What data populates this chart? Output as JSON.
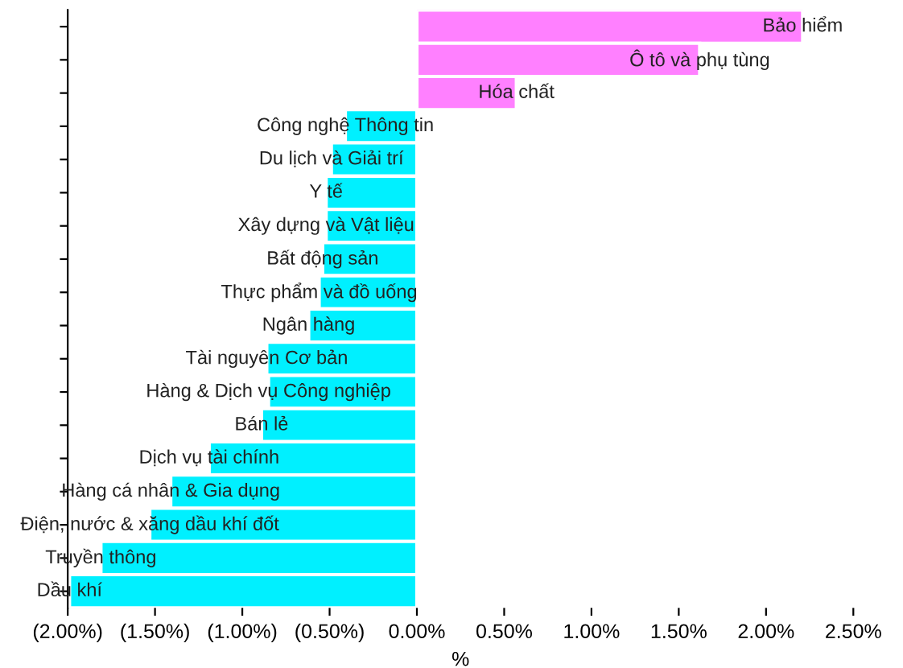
{
  "chart_data": {
    "type": "bar",
    "orientation": "horizontal",
    "xlabel": "%",
    "categories": [
      "Bảo hiểm",
      "Ô tô và phụ tùng",
      "Hóa chất",
      "Công nghệ Thông tin",
      "Du lịch và Giải trí",
      "Y tế",
      "Xây dựng và Vật liệu",
      "Bất động sản",
      "Thực phẩm và đồ uống",
      "Ngân hàng",
      "Tài nguyên Cơ bản",
      "Hàng & Dịch vụ Công nghiệp",
      "Bán lẻ",
      "Dịch vụ tài chính",
      "Hàng cá nhân & Gia dụng",
      "Điện, nước & xăng dầu khí đốt",
      "Truyền thông",
      "Dầu khí"
    ],
    "values": [
      2.21,
      1.62,
      0.57,
      -0.41,
      -0.49,
      -0.52,
      -0.52,
      -0.54,
      -0.56,
      -0.62,
      -0.86,
      -0.85,
      -0.89,
      -1.19,
      -1.41,
      -1.53,
      -1.81,
      -1.99
    ],
    "colors": [
      "#ff80ff",
      "#ff80ff",
      "#ff80ff",
      "#00f0ff",
      "#00f0ff",
      "#00f0ff",
      "#00f0ff",
      "#00f0ff",
      "#00f0ff",
      "#00f0ff",
      "#00f0ff",
      "#00f0ff",
      "#00f0ff",
      "#00f0ff",
      "#00f0ff",
      "#00f0ff",
      "#00f0ff",
      "#00f0ff"
    ],
    "xlim": [
      -2.0,
      2.5
    ],
    "xticks": [
      {
        "value": -2.0,
        "label": "(2.00%)"
      },
      {
        "value": -1.5,
        "label": "(1.50%)"
      },
      {
        "value": -1.0,
        "label": "(1.00%)"
      },
      {
        "value": -0.5,
        "label": "(0.50%)"
      },
      {
        "value": 0,
        "label": "0.00%"
      },
      {
        "value": 0.5,
        "label": "0.50%"
      },
      {
        "value": 1.0,
        "label": "1.00%"
      },
      {
        "value": 1.5,
        "label": "1.50%"
      },
      {
        "value": 2.0,
        "label": "2.00%"
      },
      {
        "value": 2.5,
        "label": "2.50%"
      }
    ],
    "tick_labels": "x",
    "grid": false,
    "legend": false
  }
}
